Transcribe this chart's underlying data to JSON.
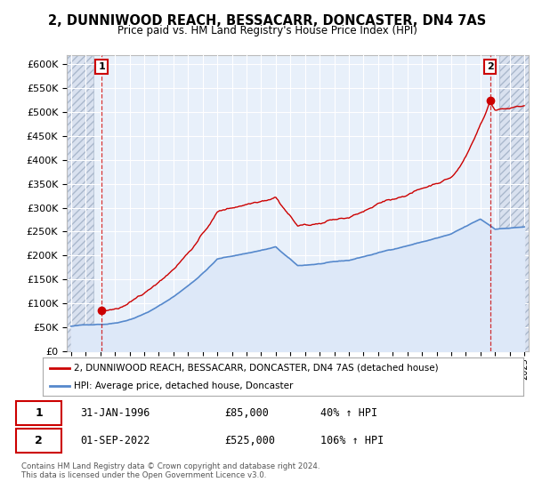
{
  "title": "2, DUNNIWOOD REACH, BESSACARR, DONCASTER, DN4 7AS",
  "subtitle": "Price paid vs. HM Land Registry's House Price Index (HPI)",
  "ylim": [
    0,
    620000
  ],
  "yticks": [
    0,
    50000,
    100000,
    150000,
    200000,
    250000,
    300000,
    350000,
    400000,
    450000,
    500000,
    550000,
    600000
  ],
  "ytick_labels": [
    "£0",
    "£50K",
    "£100K",
    "£150K",
    "£200K",
    "£250K",
    "£300K",
    "£350K",
    "£400K",
    "£450K",
    "£500K",
    "£550K",
    "£600K"
  ],
  "property_color": "#cc0000",
  "hpi_color": "#5588cc",
  "hpi_fill_color": "#dde8f8",
  "transaction1_year": 1996.083,
  "transaction1_price": 85000,
  "transaction2_year": 2022.667,
  "transaction2_price": 525000,
  "legend_property": "2, DUNNIWOOD REACH, BESSACARR, DONCASTER, DN4 7AS (detached house)",
  "legend_hpi": "HPI: Average price, detached house, Doncaster",
  "table_row1": [
    "1",
    "31-JAN-1996",
    "£85,000",
    "40% ↑ HPI"
  ],
  "table_row2": [
    "2",
    "01-SEP-2022",
    "£525,000",
    "106% ↑ HPI"
  ],
  "footer": "Contains HM Land Registry data © Crown copyright and database right 2024.\nThis data is licensed under the Open Government Licence v3.0.",
  "plot_bg_color": "#e8f0fa",
  "grid_color": "#ffffff",
  "hatch_bg_color": "#d0d8e8"
}
